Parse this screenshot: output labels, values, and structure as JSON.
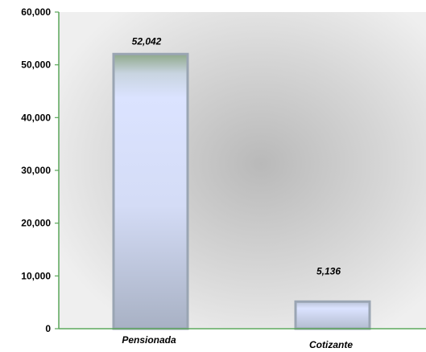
{
  "colors": {
    "axis": "#5aa55a",
    "bar_fill_light": "#d7e2ff",
    "bar_fill_dark": "#aab4c8",
    "bar_top": "#8fa88a",
    "bar_border": "#9aa5b3",
    "plot_bg_center": "#bdbdbd",
    "plot_bg_edge": "#ececec"
  },
  "chart_data": {
    "type": "bar",
    "categories": [
      "Pensionada",
      "Cotizante"
    ],
    "values": [
      52042,
      5136
    ],
    "data_labels": [
      "52,042",
      "5,136"
    ],
    "title": "",
    "xlabel": "",
    "ylabel": "",
    "ylim": [
      0,
      60000
    ],
    "yticks": [
      0,
      10000,
      20000,
      30000,
      40000,
      50000,
      60000
    ],
    "ytick_labels": [
      "0",
      "10,000",
      "20,000",
      "30,000",
      "40,000",
      "50,000",
      "60,000"
    ],
    "grid": false,
    "legend": "none"
  }
}
